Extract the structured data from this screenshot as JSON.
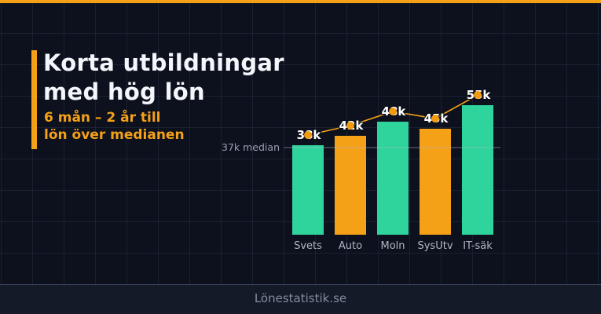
{
  "header": {
    "title_line1": "Korta utbildningar",
    "title_line2": "med hög lön",
    "subtitle_line1": "6 mån – 2 år till",
    "subtitle_line2": "lön över medianen"
  },
  "chart_data": {
    "type": "bar",
    "title": "Korta utbildningar med hög lön",
    "categories": [
      "Svets",
      "Auto",
      "Moln",
      "SysUtv",
      "IT-säk"
    ],
    "values": [
      38,
      42,
      48,
      45,
      55
    ],
    "value_labels": [
      "38k",
      "42k",
      "48k",
      "45k",
      "55k"
    ],
    "bar_colors": [
      "#2fd49c",
      "#f5a118",
      "#2fd49c",
      "#f5a118",
      "#2fd49c"
    ],
    "median": {
      "value": 37,
      "label": "37k median"
    },
    "overlay_line": {
      "color": "#f5a118",
      "follows_values": true,
      "dot_color": "#f2990e"
    },
    "xlabel": "",
    "ylabel": "",
    "ylim": [
      0,
      60
    ],
    "legend": "none",
    "background_grid": true
  },
  "footer": {
    "brand": "Lönestatistik.se"
  },
  "colors": {
    "background": "#0d111d",
    "footer_band": "#151a28",
    "accent_orange": "#f5a118",
    "bar_green": "#2fd49c",
    "bar_orange": "#f5a118",
    "title_text": "#f3f6fa",
    "muted_text": "#98a1b0"
  }
}
